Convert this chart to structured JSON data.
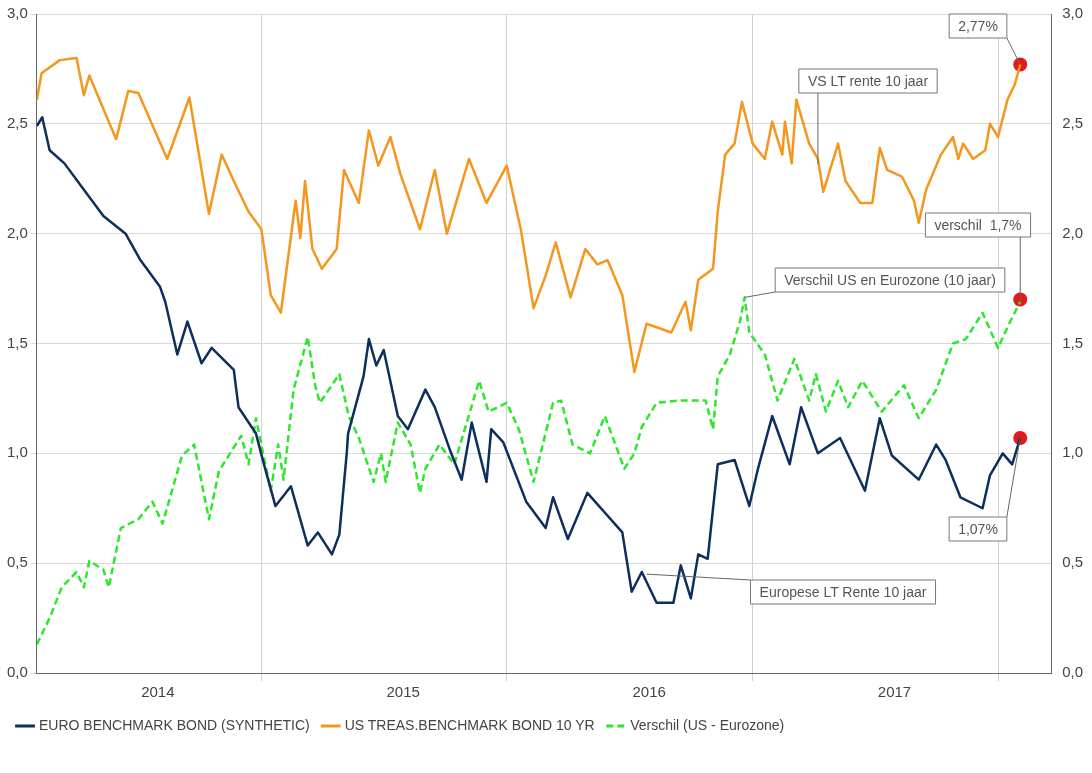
{
  "chart_data": {
    "type": "line",
    "xlim": [
      "2014-02-01",
      "2018-03-21"
    ],
    "xticks": [
      {
        "value": "2014-07-31",
        "label": "2014"
      },
      {
        "value": "2015-01-01",
        "label": null
      },
      {
        "value": "2015-07-31",
        "label": "2015"
      },
      {
        "value": "2016-01-01",
        "label": null
      },
      {
        "value": "2016-07-31",
        "label": "2016"
      },
      {
        "value": "2017-01-01",
        "label": null
      },
      {
        "value": "2017-07-31",
        "label": "2017"
      },
      {
        "value": "2018-01-01",
        "label": null
      }
    ],
    "ylim": [
      0,
      3
    ],
    "yticks": [
      {
        "value": 0,
        "label": "0,0"
      },
      {
        "value": 0.5,
        "label": "0,5"
      },
      {
        "value": 1,
        "label": "1,0"
      },
      {
        "value": 1.5,
        "label": "1,5"
      },
      {
        "value": 2,
        "label": "2,0"
      },
      {
        "value": 2.5,
        "label": "2,5"
      },
      {
        "value": 3,
        "label": "3,0"
      }
    ],
    "y2lim": [
      0,
      3
    ],
    "y2ticks": [
      {
        "value": 0,
        "label": "0,0"
      },
      {
        "value": 0.5,
        "label": "0,5"
      },
      {
        "value": 1,
        "label": "1,0"
      },
      {
        "value": 1.5,
        "label": "1,5"
      },
      {
        "value": 2,
        "label": "2,0"
      },
      {
        "value": 2.5,
        "label": "2,5"
      },
      {
        "value": 3,
        "label": "3,0"
      }
    ],
    "grid": true,
    "legend": "bottom",
    "marker": "none",
    "series": [
      {
        "name": "EURO BENCHMARK BOND (SYNTHETIC)",
        "color": "#0d2f5e",
        "line_style": "solid",
        "x": [
          "2014-02-01",
          "2014-02-09",
          "2014-02-20",
          "2014-03-14",
          "2014-04-12",
          "2014-05-11",
          "2014-06-13",
          "2014-07-05",
          "2014-08-03",
          "2014-08-11",
          "2014-08-29",
          "2014-09-13",
          "2014-10-04",
          "2014-10-19",
          "2014-11-21",
          "2014-11-28",
          "2014-12-24",
          "2015-01-04",
          "2015-01-22",
          "2015-02-14",
          "2015-03-11",
          "2015-03-26",
          "2015-04-16",
          "2015-04-27",
          "2015-05-08",
          "2015-05-10",
          "2015-06-02",
          "2015-06-10",
          "2015-06-21",
          "2015-07-02",
          "2015-07-23",
          "2015-08-07",
          "2015-09-02",
          "2015-09-16",
          "2015-10-08",
          "2015-10-26",
          "2015-11-10",
          "2015-12-02",
          "2015-12-09",
          "2015-12-27",
          "2016-01-30",
          "2016-02-28",
          "2016-03-10",
          "2016-04-01",
          "2016-04-30",
          "2016-06-21",
          "2016-07-05",
          "2016-07-20",
          "2016-08-11",
          "2016-09-05",
          "2016-09-16",
          "2016-10-01",
          "2016-10-12",
          "2016-10-26",
          "2016-11-10",
          "2016-12-05",
          "2016-12-27",
          "2017-01-08",
          "2017-01-30",
          "2017-02-25",
          "2017-03-14",
          "2017-04-08",
          "2017-05-11",
          "2017-06-17",
          "2017-07-09",
          "2017-07-27",
          "2017-09-05",
          "2017-10-01",
          "2017-10-15",
          "2017-11-06",
          "2017-12-09",
          "2017-12-20",
          "2018-01-08",
          "2018-01-22",
          "2018-02-03"
        ],
        "values": [
          2.49,
          2.53,
          2.38,
          2.32,
          2.2,
          2.08,
          2.0,
          1.88,
          1.76,
          1.69,
          1.45,
          1.6,
          1.41,
          1.48,
          1.38,
          1.21,
          1.09,
          0.96,
          0.76,
          0.85,
          0.58,
          0.64,
          0.54,
          0.63,
          1.0,
          1.09,
          1.35,
          1.52,
          1.4,
          1.47,
          1.17,
          1.11,
          1.29,
          1.21,
          1.02,
          0.88,
          1.14,
          0.87,
          1.11,
          1.05,
          0.78,
          0.66,
          0.8,
          0.61,
          0.82,
          0.64,
          0.37,
          0.46,
          0.32,
          0.32,
          0.49,
          0.34,
          0.54,
          0.52,
          0.95,
          0.97,
          0.76,
          0.92,
          1.17,
          0.95,
          1.21,
          1.0,
          1.07,
          0.83,
          1.16,
          0.99,
          0.88,
          1.04,
          0.97,
          0.8,
          0.75,
          0.9,
          1.0,
          0.95,
          1.07
        ]
      },
      {
        "name": "US TREAS.BENCHMARK BOND 10 YR",
        "color": "#f5961e",
        "line_style": "solid",
        "x": [
          "2014-02-01",
          "2014-02-08",
          "2014-03-07",
          "2014-04-01",
          "2014-04-12",
          "2014-04-20",
          "2014-05-30",
          "2014-06-17",
          "2014-07-02",
          "2014-08-14",
          "2014-09-16",
          "2014-10-15",
          "2014-11-03",
          "2014-11-21",
          "2014-12-13",
          "2015-01-01",
          "2015-01-15",
          "2015-01-30",
          "2015-02-21",
          "2015-02-28",
          "2015-03-07",
          "2015-03-18",
          "2015-04-01",
          "2015-04-23",
          "2015-05-04",
          "2015-05-26",
          "2015-06-10",
          "2015-06-24",
          "2015-07-12",
          "2015-07-27",
          "2015-08-25",
          "2015-09-16",
          "2015-10-04",
          "2015-11-06",
          "2015-12-02",
          "2016-01-01",
          "2016-01-22",
          "2016-02-10",
          "2016-02-28",
          "2016-03-14",
          "2016-04-05",
          "2016-04-27",
          "2016-05-15",
          "2016-05-30",
          "2016-06-21",
          "2016-07-09",
          "2016-07-27",
          "2016-09-02",
          "2016-09-23",
          "2016-10-01",
          "2016-10-12",
          "2016-11-03",
          "2016-11-10",
          "2016-11-21",
          "2016-12-05",
          "2016-12-16",
          "2017-01-01",
          "2017-01-19",
          "2017-01-30",
          "2017-02-14",
          "2017-02-18",
          "2017-02-28",
          "2017-03-07",
          "2017-03-26",
          "2017-04-08",
          "2017-04-16",
          "2017-05-08",
          "2017-05-19",
          "2017-06-10",
          "2017-06-28",
          "2017-07-09",
          "2017-07-20",
          "2017-08-11",
          "2017-08-29",
          "2017-09-05",
          "2017-09-16",
          "2017-10-08",
          "2017-10-26",
          "2017-11-03",
          "2017-11-10",
          "2017-11-25",
          "2017-12-13",
          "2017-12-20",
          "2018-01-01",
          "2018-01-15",
          "2018-01-26",
          "2018-02-03"
        ],
        "values": [
          2.61,
          2.73,
          2.79,
          2.8,
          2.63,
          2.72,
          2.43,
          2.65,
          2.64,
          2.34,
          2.62,
          2.09,
          2.36,
          2.24,
          2.1,
          2.02,
          1.72,
          1.64,
          2.15,
          1.98,
          2.24,
          1.93,
          1.84,
          1.93,
          2.29,
          2.14,
          2.47,
          2.31,
          2.44,
          2.27,
          2.02,
          2.29,
          2.0,
          2.34,
          2.14,
          2.31,
          2.02,
          1.66,
          1.81,
          1.96,
          1.71,
          1.93,
          1.86,
          1.88,
          1.72,
          1.37,
          1.59,
          1.55,
          1.69,
          1.56,
          1.79,
          1.84,
          2.1,
          2.36,
          2.41,
          2.6,
          2.41,
          2.34,
          2.51,
          2.36,
          2.51,
          2.32,
          2.61,
          2.41,
          2.34,
          2.19,
          2.41,
          2.24,
          2.14,
          2.14,
          2.39,
          2.29,
          2.26,
          2.15,
          2.05,
          2.2,
          2.36,
          2.44,
          2.34,
          2.41,
          2.34,
          2.38,
          2.5,
          2.44,
          2.61,
          2.68,
          2.77
        ]
      },
      {
        "name": "Verschil (US - Eurozone)",
        "color": "#2ee62e",
        "line_style": "dashed",
        "x": [
          "2014-02-01",
          "2014-02-20",
          "2014-03-10",
          "2014-04-01",
          "2014-04-12",
          "2014-04-20",
          "2014-05-11",
          "2014-05-19",
          "2014-06-06",
          "2014-07-02",
          "2014-07-23",
          "2014-08-07",
          "2014-09-05",
          "2014-09-23",
          "2014-10-15",
          "2014-10-30",
          "2014-12-02",
          "2014-12-13",
          "2014-12-24",
          "2015-01-15",
          "2015-01-26",
          "2015-02-03",
          "2015-02-18",
          "2015-03-11",
          "2015-03-22",
          "2015-03-29",
          "2015-04-27",
          "2015-05-11",
          "2015-05-26",
          "2015-06-17",
          "2015-06-28",
          "2015-07-05",
          "2015-07-23",
          "2015-08-11",
          "2015-08-25",
          "2015-09-02",
          "2015-09-23",
          "2015-10-15",
          "2015-11-21",
          "2015-12-05",
          "2016-01-01",
          "2016-01-19",
          "2016-02-10",
          "2016-03-10",
          "2016-03-22",
          "2016-04-08",
          "2016-05-04",
          "2016-05-26",
          "2016-06-24",
          "2016-07-09",
          "2016-07-20",
          "2016-08-11",
          "2016-09-13",
          "2016-10-23",
          "2016-11-03",
          "2016-11-10",
          "2016-11-28",
          "2016-12-13",
          "2016-12-20",
          "2016-12-27",
          "2017-01-19",
          "2017-02-07",
          "2017-03-04",
          "2017-03-26",
          "2017-04-05",
          "2017-04-20",
          "2017-05-08",
          "2017-05-23",
          "2017-06-13",
          "2017-07-12",
          "2017-08-14",
          "2017-09-05",
          "2017-10-01",
          "2017-10-26",
          "2017-11-14",
          "2017-12-09",
          "2018-01-01",
          "2018-01-19",
          "2018-02-03"
        ],
        "values": [
          0.13,
          0.25,
          0.39,
          0.46,
          0.39,
          0.51,
          0.47,
          0.39,
          0.66,
          0.7,
          0.78,
          0.68,
          0.99,
          1.04,
          0.7,
          0.92,
          1.08,
          0.95,
          1.16,
          0.83,
          1.04,
          0.88,
          1.29,
          1.53,
          1.31,
          1.23,
          1.36,
          1.17,
          1.07,
          0.87,
          1.0,
          0.87,
          1.14,
          1.04,
          0.82,
          0.93,
          1.04,
          0.95,
          1.33,
          1.19,
          1.23,
          1.11,
          0.87,
          1.23,
          1.24,
          1.04,
          1.0,
          1.17,
          0.93,
          1.0,
          1.12,
          1.23,
          1.24,
          1.24,
          1.11,
          1.35,
          1.45,
          1.6,
          1.71,
          1.55,
          1.45,
          1.24,
          1.43,
          1.24,
          1.36,
          1.19,
          1.33,
          1.21,
          1.33,
          1.19,
          1.31,
          1.16,
          1.29,
          1.5,
          1.52,
          1.64,
          1.48,
          1.6,
          1.69
        ]
      },
      {
        "type": "scatter",
        "color": "#e31a1c",
        "marker": "circle",
        "x": [
          "2018-02-03",
          "2018-02-03",
          "2018-02-03"
        ],
        "values": [
          2.77,
          1.7,
          1.07
        ]
      }
    ],
    "annotations": [
      {
        "text": "2,77%",
        "x": "2018-02-03",
        "y": 2.77
      },
      {
        "text": "VS LT rente 10 jaar",
        "x": "2017-04-08",
        "y": 2.32
      },
      {
        "text": "verschil  1,7%",
        "x": "2018-02-03",
        "y": 1.7
      },
      {
        "text": "Verschil US en Eurozone (10 jaar)",
        "x": "2016-12-20",
        "y": 1.71
      },
      {
        "text": "1,07%",
        "x": "2018-02-03",
        "y": 1.07
      },
      {
        "text": "Europese LT Rente 10 jaar",
        "x": "2016-07-27",
        "y": 0.45
      }
    ]
  }
}
